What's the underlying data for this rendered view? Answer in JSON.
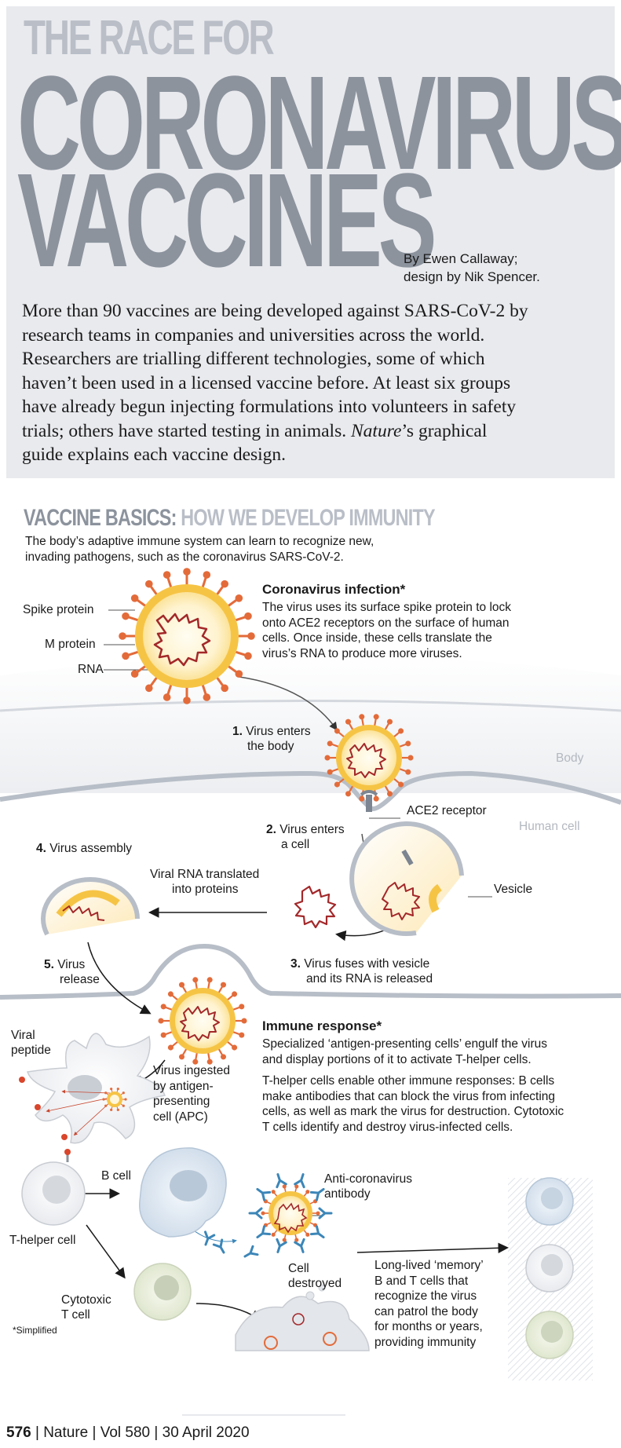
{
  "header": {
    "kicker": "THE RACE FOR",
    "title_line1": "CORONAVIRUS",
    "title_line2": "VACCINES",
    "byline_1": "By Ewen Callaway;",
    "byline_2": "design by Nik Spencer.",
    "intro_lines": [
      "More than 90 vaccines are being developed against SARS-CoV-2 by",
      "research teams in companies and universities across the world.",
      "Researchers are trialling different technologies, some of which",
      "haven’t been used in a licensed vaccine before. At least six groups",
      "have already begun injecting formulations into volunteers in safety",
      "trials; others have started testing in animals. "
    ],
    "intro_italic": "Nature",
    "intro_tail": "’s graphical",
    "intro_last": "guide explains each vaccine design."
  },
  "basics": {
    "title_a": "VACCINE BASICS:",
    "title_b": " HOW WE DEVELOP IMMUNITY",
    "subtitle_1": "The body’s adaptive immune system can learn to recognize new,",
    "subtitle_2": "invading pathogens, such as the coronavirus SARS-CoV-2."
  },
  "virus_labels": {
    "spike": "Spike protein",
    "m_protein": "M protein",
    "rna": "RNA"
  },
  "infection": {
    "heading": "Coronavirus infection*",
    "lines": [
      "The virus uses its surface spike protein to lock",
      "onto ACE2 receptors on the surface of human",
      "cells. Once inside, these cells translate the",
      "virus’s RNA to produce more viruses."
    ]
  },
  "steps": {
    "s1_num": "1.",
    "s1_a": "Virus enters",
    "s1_b": "the body",
    "body": "Body",
    "ace2": "ACE2 receptor",
    "human_cell": "Human cell",
    "s2_num": "2.",
    "s2_a": "Virus enters",
    "s2_b": "a cell",
    "vesicle": "Vesicle",
    "s4_num": "4.",
    "s4_a": "Virus assembly",
    "translated_a": "Viral RNA translated",
    "translated_b": "into proteins",
    "s3_num": "3.",
    "s3_a": "Virus fuses with vesicle",
    "s3_b": "and its RNA is released",
    "s5_num": "5.",
    "s5_a": "Virus",
    "s5_b": "release"
  },
  "immune": {
    "viral_peptide_a": "Viral",
    "viral_peptide_b": "peptide",
    "ingested": [
      "Virus ingested",
      "by antigen-",
      "presenting",
      "cell (APC)"
    ],
    "heading": "Immune response*",
    "para1": [
      "Specialized ‘antigen-presenting cells’ engulf the virus",
      "and display portions of it to activate T-helper cells."
    ],
    "para2": [
      "T-helper cells enable other immune responses: B cells",
      "make antibodies that can block the virus from infecting",
      "cells, as well as mark the virus for destruction. Cytotoxic",
      "T cells identify and destroy virus-infected cells."
    ],
    "b_cell": "B cell",
    "antibody_a": "Anti-coronavirus",
    "antibody_b": "antibody",
    "t_helper": "T-helper cell",
    "cell_destroyed_a": "Cell",
    "cell_destroyed_b": "destroyed",
    "cytotoxic_a": "Cytotoxic",
    "cytotoxic_b": "T cell",
    "memory": [
      "Long-lived ‘memory’",
      "B and T cells that",
      "recognize the virus",
      "can patrol the body",
      "for months or years,",
      "providing immunity"
    ],
    "simplified": "*Simplified"
  },
  "footer": {
    "page": "576",
    "journal": "Nature",
    "volume": "Vol 580",
    "date": "30 April 2020",
    "sep": "|"
  },
  "colors": {
    "header_bg": "#e9eaee",
    "title_grey": "#8c939d",
    "kicker_grey": "#b9bec7",
    "spike_orange": "#e36b3a",
    "virus_yellow": "#f6c445",
    "rna_red": "#a3282a",
    "membrane_grey": "#b8bec7"
  }
}
